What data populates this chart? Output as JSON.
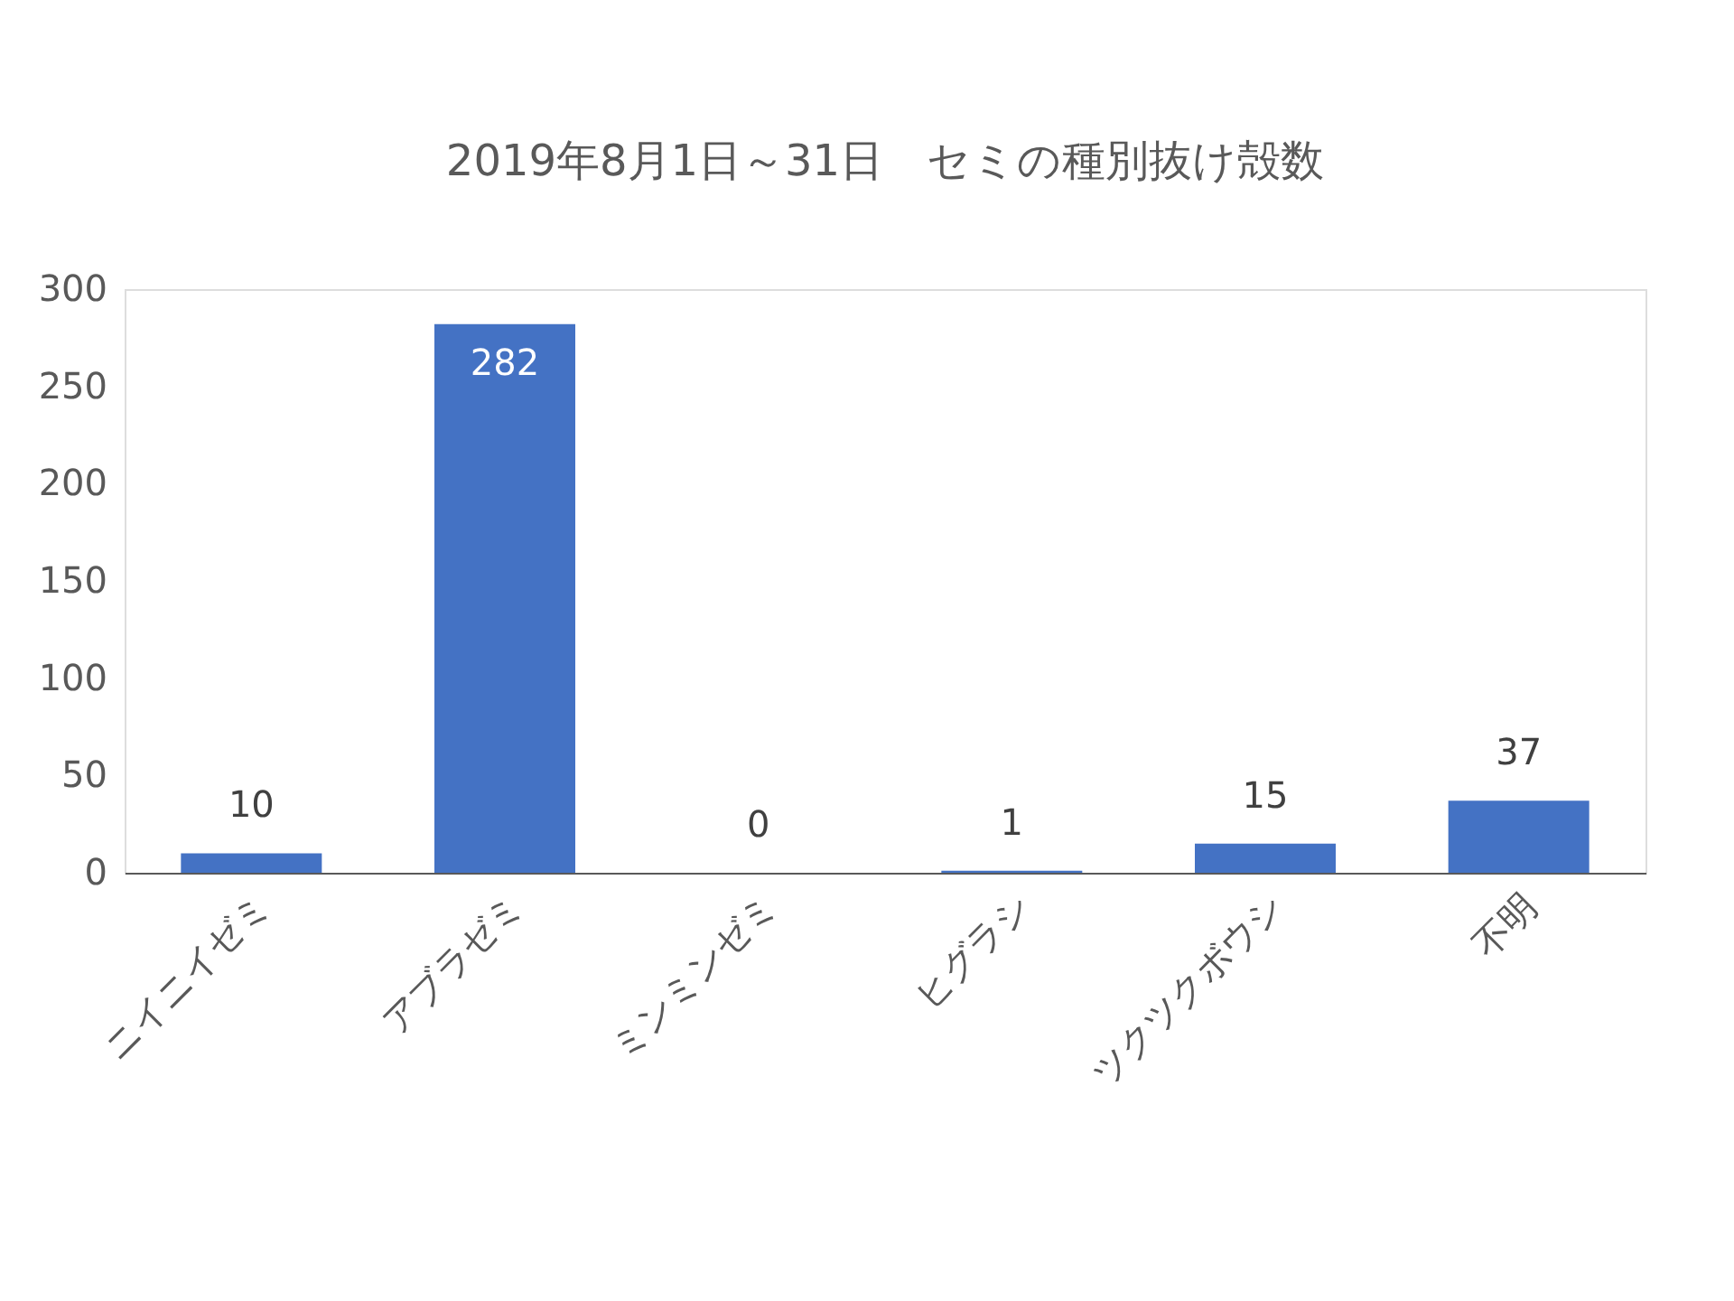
{
  "chart_data": {
    "type": "bar",
    "title": "2019年8月1日～31日　セミの種別抜け殻数",
    "categories": [
      "ニイニイゼミ",
      "アブラゼミ",
      "ミンミンゼミ",
      "ヒグラシ",
      "ツクツクボウシ",
      "不明"
    ],
    "values": [
      10,
      282,
      0,
      1,
      15,
      37
    ],
    "color": "#4472c4",
    "ylim": [
      0,
      300
    ],
    "yticks": [
      0,
      50,
      100,
      150,
      200,
      250,
      300
    ],
    "grid": false,
    "data_labels": true
  }
}
